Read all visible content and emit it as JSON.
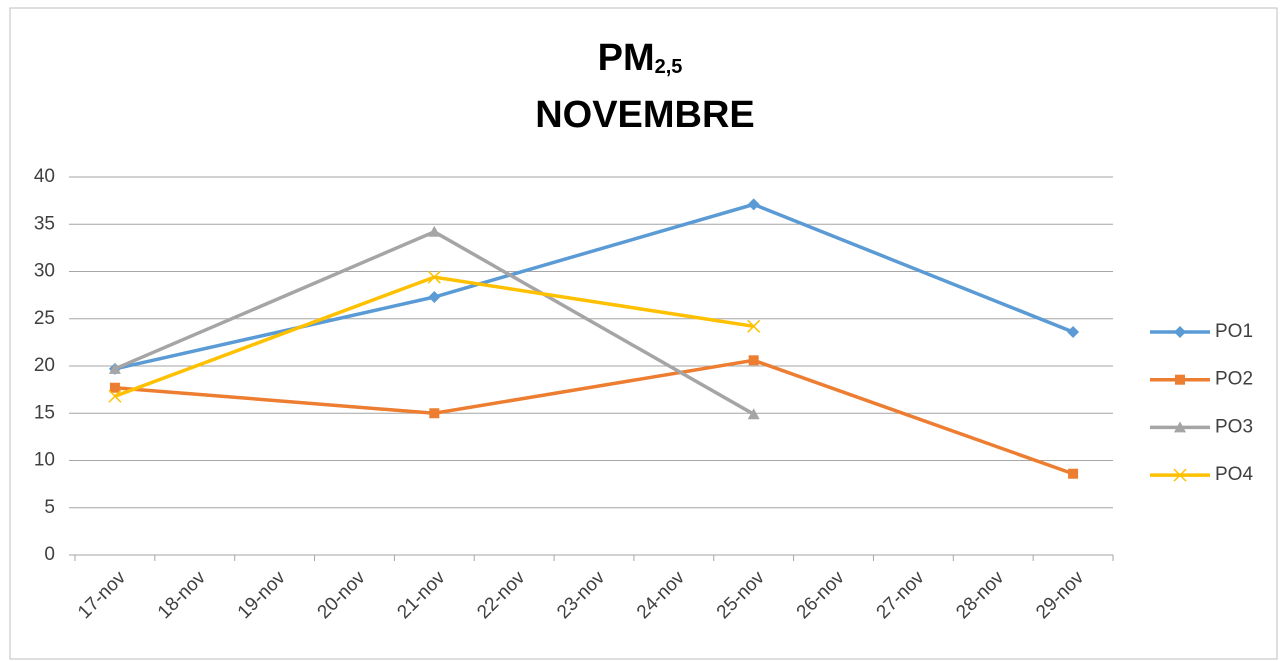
{
  "chart_data": {
    "type": "line",
    "title": "PM",
    "title_subscript": "2,5",
    "subtitle": "NOVEMBRE",
    "categories": [
      "17-nov",
      "18-nov",
      "19-nov",
      "20-nov",
      "21-nov",
      "22-nov",
      "23-nov",
      "24-nov",
      "25-nov",
      "26-nov",
      "27-nov",
      "28-nov",
      "29-nov"
    ],
    "series": [
      {
        "name": "PO1",
        "color": "#5b9bd5",
        "marker": "diamond",
        "values": [
          19.7,
          null,
          null,
          null,
          27.3,
          null,
          null,
          null,
          37.1,
          null,
          null,
          null,
          23.6
        ]
      },
      {
        "name": "PO2",
        "color": "#ed7d31",
        "marker": "square",
        "values": [
          17.7,
          null,
          null,
          null,
          15.0,
          null,
          null,
          null,
          20.6,
          null,
          null,
          null,
          8.6
        ]
      },
      {
        "name": "PO3",
        "color": "#a5a5a5",
        "marker": "triangle",
        "values": [
          19.7,
          null,
          null,
          null,
          34.2,
          null,
          null,
          null,
          14.9,
          null,
          null,
          null,
          null
        ]
      },
      {
        "name": "PO4",
        "color": "#ffc000",
        "marker": "x",
        "values": [
          16.8,
          null,
          null,
          null,
          29.4,
          null,
          null,
          null,
          24.2,
          null,
          null,
          null,
          null
        ]
      }
    ],
    "connect_gaps": true,
    "ylim": [
      0,
      40
    ],
    "yticks": [
      0,
      5,
      10,
      15,
      20,
      25,
      30,
      35,
      40
    ],
    "grid": true,
    "legend": "right"
  }
}
